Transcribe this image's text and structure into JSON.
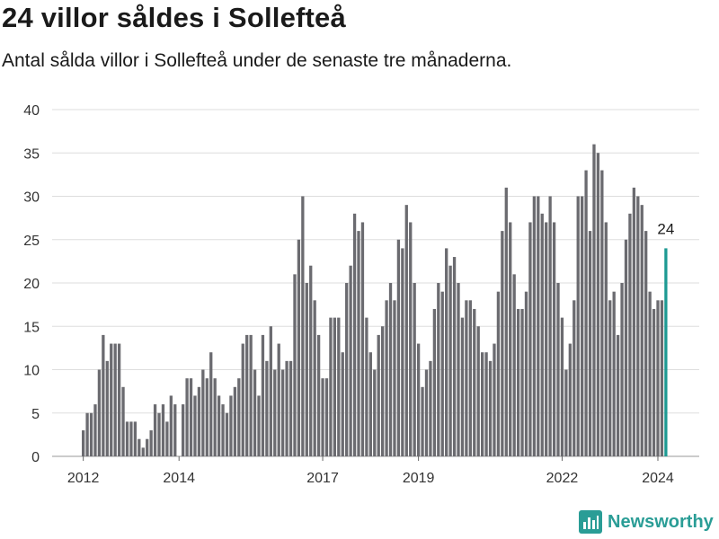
{
  "title": "24 villor såldes i Sollefteå",
  "subtitle": "Antal sålda villor i Sollefteå under de senaste tre månaderna.",
  "brand": "Newsworthy",
  "colors": {
    "bar": "#6b6b70",
    "highlight": "#1d9a93",
    "grid": "#dddddd",
    "brand": "#2a9d96"
  },
  "chart_data": {
    "type": "bar",
    "title": "24 villor såldes i Sollefteå",
    "subtitle": "Antal sålda villor i Sollefteå under de senaste tre månaderna.",
    "xlabel": "",
    "ylabel": "",
    "ylim": [
      0,
      40
    ],
    "yticks": [
      0,
      5,
      10,
      15,
      20,
      25,
      30,
      35,
      40
    ],
    "xticks": [
      {
        "label": "2012",
        "index": 0
      },
      {
        "label": "2014",
        "index": 24
      },
      {
        "label": "2017",
        "index": 60
      },
      {
        "label": "2019",
        "index": 84
      },
      {
        "label": "2022",
        "index": 120
      },
      {
        "label": "2024",
        "index": 144
      }
    ],
    "grid": true,
    "legend": "none",
    "highlight_index": 146,
    "highlight_label": "24",
    "values": [
      3,
      5,
      5,
      6,
      10,
      14,
      11,
      13,
      13,
      13,
      8,
      4,
      4,
      4,
      2,
      1,
      2,
      3,
      6,
      5,
      6,
      4,
      7,
      6,
      0,
      6,
      9,
      9,
      7,
      8,
      10,
      9,
      12,
      9,
      7,
      6,
      5,
      7,
      8,
      9,
      13,
      14,
      14,
      10,
      7,
      14,
      11,
      15,
      10,
      13,
      10,
      11,
      11,
      21,
      25,
      30,
      20,
      22,
      18,
      14,
      9,
      9,
      16,
      16,
      16,
      12,
      20,
      22,
      28,
      26,
      27,
      16,
      12,
      10,
      14,
      15,
      18,
      20,
      18,
      25,
      24,
      29,
      27,
      20,
      13,
      8,
      10,
      11,
      17,
      20,
      19,
      24,
      22,
      23,
      20,
      16,
      18,
      18,
      17,
      15,
      12,
      12,
      11,
      13,
      19,
      26,
      31,
      27,
      21,
      17,
      17,
      19,
      27,
      30,
      30,
      28,
      27,
      30,
      27,
      20,
      16,
      10,
      13,
      18,
      30,
      30,
      33,
      26,
      36,
      35,
      33,
      27,
      18,
      19,
      14,
      20,
      25,
      28,
      31,
      30,
      29,
      26,
      19,
      17,
      18,
      18,
      24
    ]
  }
}
